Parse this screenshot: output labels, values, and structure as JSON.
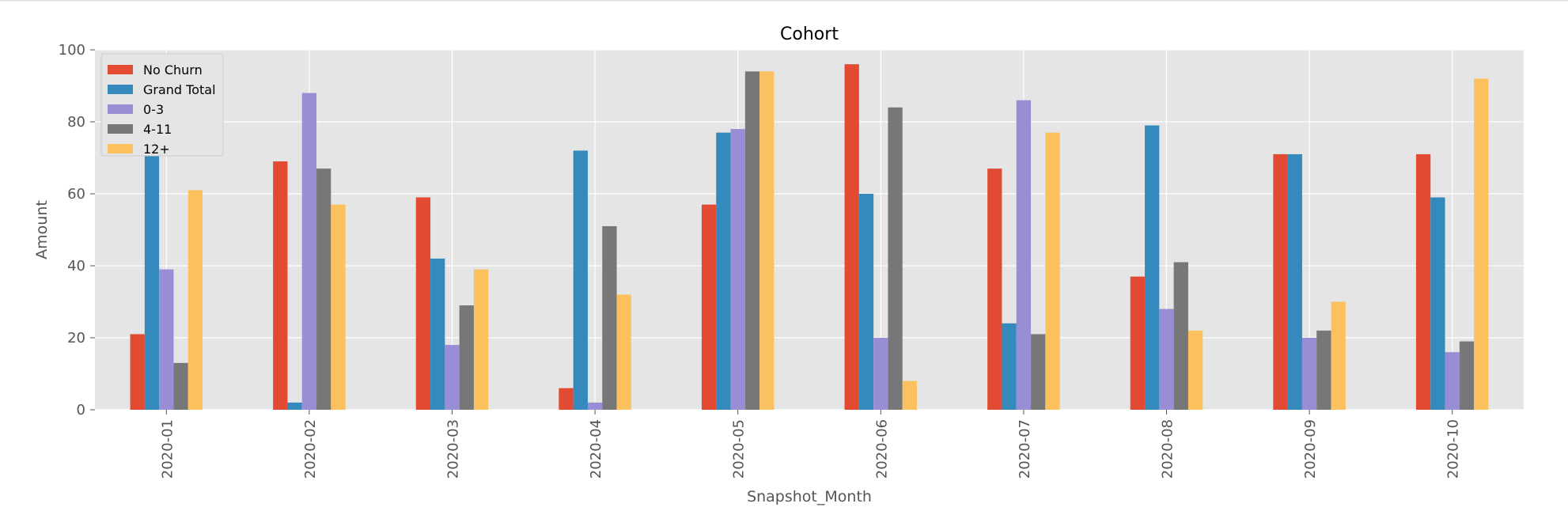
{
  "chart_data": {
    "type": "bar",
    "title": "Cohort",
    "xlabel": "Snapshot_Month",
    "ylabel": "Amount",
    "ylim": [
      0,
      100
    ],
    "yticks": [
      0,
      20,
      40,
      60,
      80,
      100
    ],
    "grid": true,
    "legend_position": "top-left",
    "categories": [
      "2020-01",
      "2020-02",
      "2020-03",
      "2020-04",
      "2020-05",
      "2020-06",
      "2020-07",
      "2020-08",
      "2020-09",
      "2020-10"
    ],
    "series": [
      {
        "name": "No Churn",
        "color": "#E24A33",
        "values": [
          21,
          69,
          59,
          6,
          57,
          96,
          67,
          37,
          71,
          71
        ]
      },
      {
        "name": "Grand Total",
        "color": "#348ABD",
        "values": [
          79,
          2,
          42,
          72,
          77,
          60,
          24,
          79,
          71,
          59
        ]
      },
      {
        "name": "0-3",
        "color": "#988ED5",
        "values": [
          39,
          88,
          18,
          2,
          78,
          20,
          86,
          28,
          20,
          16
        ]
      },
      {
        "name": "4-11",
        "color": "#777777",
        "values": [
          13,
          67,
          29,
          51,
          94,
          84,
          21,
          41,
          22,
          19
        ]
      },
      {
        "name": "12+",
        "color": "#FBC15E",
        "values": [
          61,
          57,
          39,
          32,
          94,
          8,
          77,
          22,
          30,
          92
        ]
      }
    ]
  },
  "colors": {
    "plot_background": "#E5E5E5",
    "grid": "#FFFFFF",
    "tick_text": "#555555",
    "legend_background": "#E5E5E5",
    "legend_border": "#CCCCCC"
  }
}
